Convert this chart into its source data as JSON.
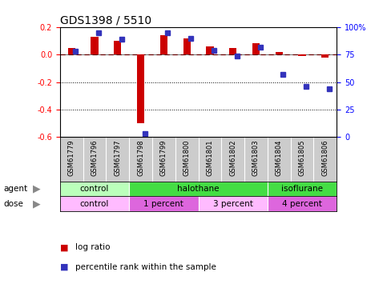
{
  "title": "GDS1398 / 5510",
  "samples": [
    "GSM61779",
    "GSM61796",
    "GSM61797",
    "GSM61798",
    "GSM61799",
    "GSM61800",
    "GSM61801",
    "GSM61802",
    "GSM61803",
    "GSM61804",
    "GSM61805",
    "GSM61806"
  ],
  "log_ratio": [
    0.05,
    0.13,
    0.1,
    -0.5,
    0.14,
    0.12,
    0.06,
    0.05,
    0.08,
    0.02,
    -0.01,
    -0.02
  ],
  "percentile": [
    78,
    95,
    89,
    3,
    95,
    90,
    79,
    74,
    82,
    57,
    46,
    44
  ],
  "ylim": [
    -0.6,
    0.2
  ],
  "y_ticks": [
    0.2,
    0.0,
    -0.2,
    -0.4,
    -0.6
  ],
  "right_y_ticks": [
    100,
    75,
    50,
    25,
    0
  ],
  "right_y_tick_pos": [
    0.2,
    0.0,
    -0.2,
    -0.4,
    -0.6
  ],
  "dotted_lines": [
    -0.2,
    -0.4
  ],
  "red_color": "#CC0000",
  "blue_color": "#3333BB",
  "agent_groups": [
    {
      "label": "control",
      "start": 0,
      "end": 3,
      "color": "#BBFFBB"
    },
    {
      "label": "halothane",
      "start": 3,
      "end": 9,
      "color": "#44DD44"
    },
    {
      "label": "isoflurane",
      "start": 9,
      "end": 12,
      "color": "#44DD44"
    }
  ],
  "dose_groups": [
    {
      "label": "control",
      "start": 0,
      "end": 3,
      "color": "#FFBBFF"
    },
    {
      "label": "1 percent",
      "start": 3,
      "end": 6,
      "color": "#DD66DD"
    },
    {
      "label": "3 percent",
      "start": 6,
      "end": 9,
      "color": "#FFBBFF"
    },
    {
      "label": "4 percent",
      "start": 9,
      "end": 12,
      "color": "#DD66DD"
    }
  ],
  "bg_color": "#FFFFFF",
  "title_fontsize": 10,
  "sample_label_fontsize": 6,
  "group_label_fontsize": 7.5,
  "legend_fontsize": 7.5
}
